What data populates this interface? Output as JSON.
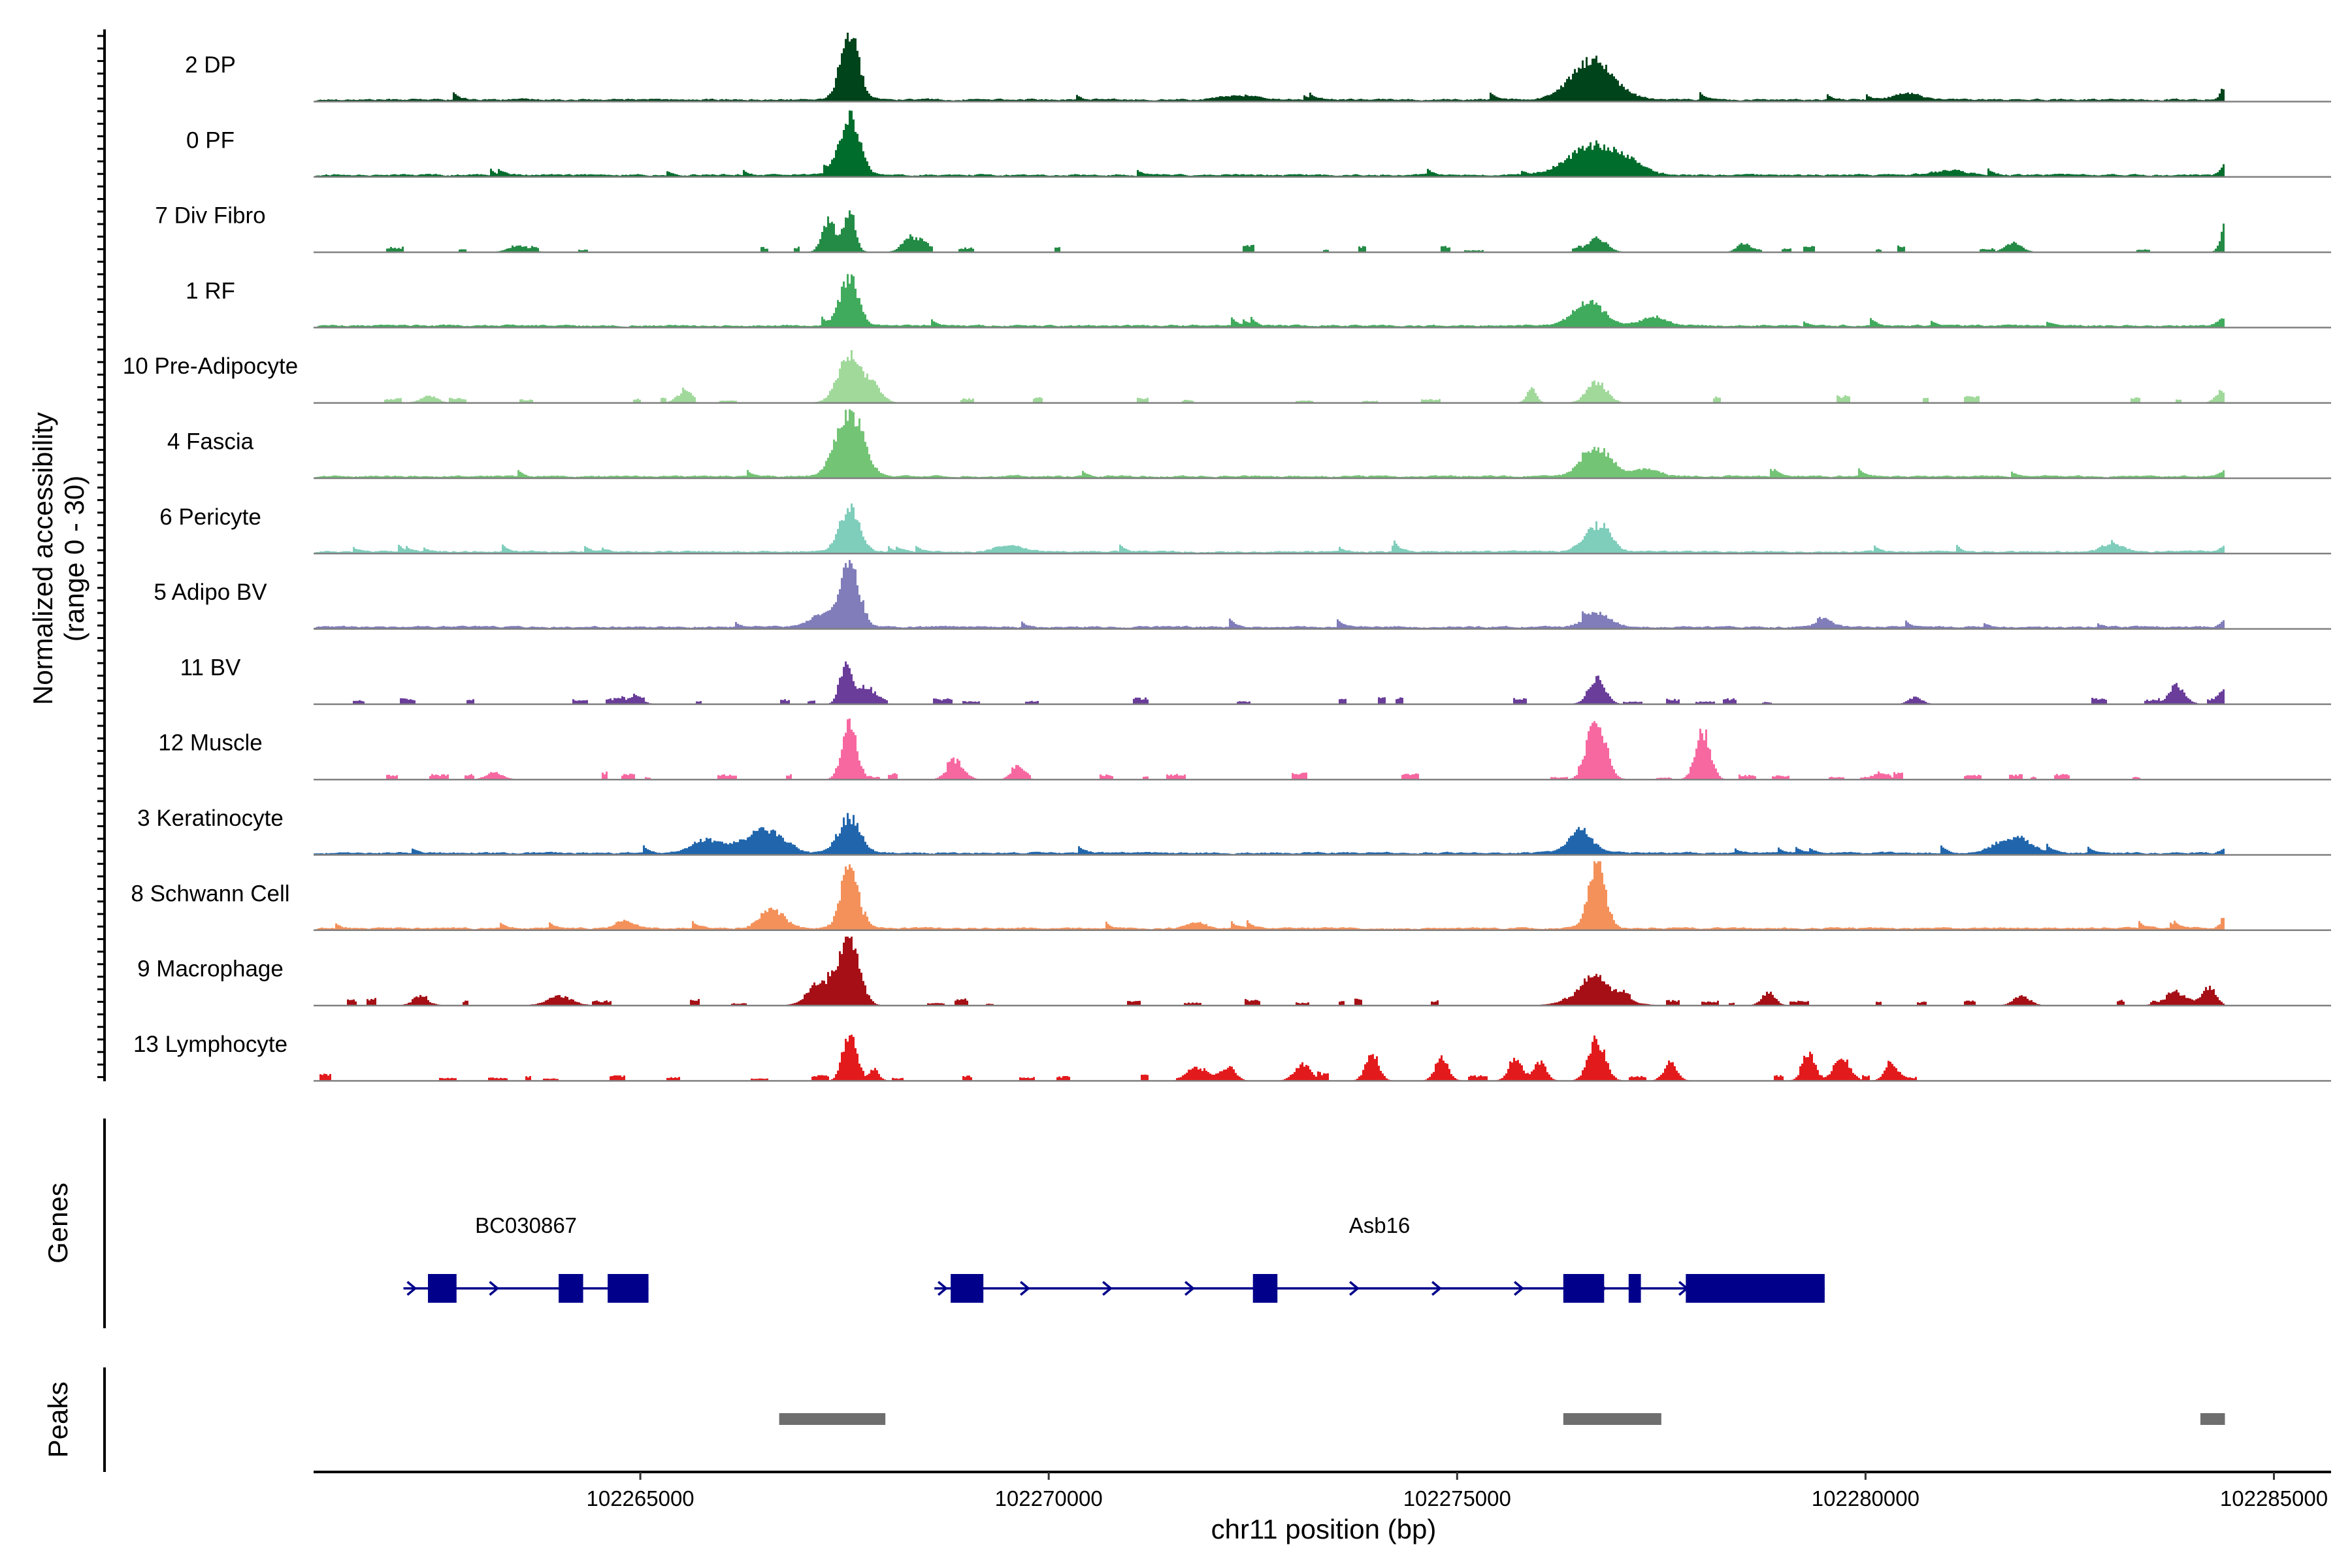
{
  "chart_data": {
    "type": "area",
    "title": "",
    "ylabel_line1": "Normalized accessibility",
    "ylabel_line2": "(range 0 - 30)",
    "ylim": [
      0,
      30
    ],
    "xlabel": "chr11 position (bp)",
    "chrom": "chr11",
    "xlim": [
      102261000,
      102285700
    ],
    "xticks": [
      102265000,
      102270000,
      102275000,
      102280000,
      102285000
    ],
    "xtick_labels": [
      "102265000",
      "102270000",
      "102275000",
      "102280000",
      "102285000"
    ],
    "data_end": 102284400,
    "tracks": [
      {
        "name": "2 DP",
        "color": "#00441b",
        "density": "dense",
        "peaks": [
          [
            102267550,
            30,
            110
          ],
          [
            102276650,
            17,
            260
          ],
          [
            102284400,
            6,
            60
          ],
          [
            102280500,
            3,
            150
          ],
          [
            102272300,
            2,
            200
          ]
        ]
      },
      {
        "name": "0 PF",
        "color": "#006d2c",
        "density": "dense",
        "peaks": [
          [
            102267550,
            26,
            120
          ],
          [
            102276650,
            13,
            300
          ],
          [
            102277100,
            4,
            200
          ],
          [
            102284400,
            5,
            60
          ],
          [
            102281000,
            2,
            200
          ]
        ]
      },
      {
        "name": "7 Div Fibro",
        "color": "#238b45",
        "density": "sparse",
        "peaks": [
          [
            102267300,
            14,
            80
          ],
          [
            102267550,
            18,
            70
          ],
          [
            102268300,
            7,
            100
          ],
          [
            102276700,
            6,
            120
          ],
          [
            102278500,
            4,
            80
          ],
          [
            102281800,
            4,
            100
          ],
          [
            102284400,
            12,
            60
          ],
          [
            102263500,
            3,
            120
          ]
        ]
      },
      {
        "name": "1 RF",
        "color": "#41ab5d",
        "density": "dense",
        "peaks": [
          [
            102267550,
            22,
            110
          ],
          [
            102276600,
            11,
            180
          ],
          [
            102277400,
            4,
            160
          ],
          [
            102284350,
            3,
            60
          ]
        ]
      },
      {
        "name": "10 Pre-Adipocyte",
        "color": "#a1d99b",
        "density": "sparse",
        "peaks": [
          [
            102267550,
            21,
            140
          ],
          [
            102267850,
            7,
            100
          ],
          [
            102276700,
            9,
            120
          ],
          [
            102275900,
            6,
            60
          ],
          [
            102265500,
            4,
            80
          ],
          [
            102262400,
            3,
            100
          ],
          [
            102284300,
            3,
            60
          ]
        ]
      },
      {
        "name": "4 Fascia",
        "color": "#74c476",
        "density": "dense",
        "peaks": [
          [
            102267550,
            30,
            160
          ],
          [
            102276700,
            12,
            180
          ],
          [
            102277300,
            3,
            150
          ],
          [
            102284400,
            3,
            60
          ]
        ]
      },
      {
        "name": "6 Pericyte",
        "color": "#7fcdbb",
        "density": "dense",
        "peaks": [
          [
            102267550,
            20,
            120
          ],
          [
            102276700,
            12,
            150
          ],
          [
            102269500,
            3,
            150
          ],
          [
            102283000,
            3,
            150
          ],
          [
            102284400,
            3,
            60
          ]
        ]
      },
      {
        "name": "5 Adipo BV",
        "color": "#807dba",
        "density": "dense",
        "peaks": [
          [
            102267550,
            27,
            120
          ],
          [
            102276700,
            6,
            150
          ],
          [
            102267200,
            5,
            150
          ],
          [
            102279500,
            3,
            100
          ],
          [
            102284400,
            3,
            60
          ]
        ]
      },
      {
        "name": "11 BV",
        "color": "#6a3d9a",
        "density": "sparse",
        "peaks": [
          [
            102267500,
            18,
            70
          ],
          [
            102267750,
            8,
            100
          ],
          [
            102276700,
            11,
            100
          ],
          [
            102283800,
            8,
            100
          ],
          [
            102284400,
            7,
            60
          ],
          [
            102264900,
            3,
            100
          ],
          [
            102280600,
            3,
            80
          ]
        ]
      },
      {
        "name": "12 Muscle",
        "color": "#f768a1",
        "density": "sparse",
        "peaks": [
          [
            102267550,
            25,
            90
          ],
          [
            102276700,
            26,
            110
          ],
          [
            102278000,
            21,
            90
          ],
          [
            102268850,
            8,
            100
          ],
          [
            102269600,
            4,
            80
          ],
          [
            102263200,
            3,
            100
          ],
          [
            102280200,
            3,
            80
          ]
        ]
      },
      {
        "name": "3 Keratinocyte",
        "color": "#2166ac",
        "density": "dense",
        "peaks": [
          [
            102267550,
            16,
            130
          ],
          [
            102266500,
            10,
            250
          ],
          [
            102265800,
            6,
            180
          ],
          [
            102276500,
            10,
            150
          ],
          [
            102281800,
            7,
            200
          ],
          [
            102284400,
            2,
            60
          ]
        ]
      },
      {
        "name": "8 Schwann Cell",
        "color": "#f4915b",
        "density": "dense",
        "peaks": [
          [
            102267550,
            30,
            100
          ],
          [
            102276700,
            30,
            100
          ],
          [
            102266600,
            8,
            150
          ],
          [
            102284400,
            6,
            60
          ],
          [
            102264800,
            3,
            120
          ],
          [
            102271800,
            3,
            100
          ]
        ]
      },
      {
        "name": "9 Macrophage",
        "color": "#a50f15",
        "density": "sparse",
        "peaks": [
          [
            102267550,
            30,
            120
          ],
          [
            102267200,
            10,
            150
          ],
          [
            102276700,
            10,
            250
          ],
          [
            102278800,
            6,
            80
          ],
          [
            102281900,
            4,
            100
          ],
          [
            102283800,
            5,
            150
          ],
          [
            102284200,
            8,
            80
          ],
          [
            102262300,
            3,
            100
          ],
          [
            102264000,
            4,
            150
          ]
        ]
      },
      {
        "name": "13 Lymphocyte",
        "color": "#e31a1c",
        "density": "sparse",
        "clip_end": 102280700,
        "peaks": [
          [
            102267550,
            22,
            80
          ],
          [
            102276700,
            18,
            100
          ],
          [
            102273950,
            12,
            80
          ],
          [
            102274800,
            10,
            80
          ],
          [
            102275700,
            10,
            80
          ],
          [
            102276000,
            8,
            80
          ],
          [
            102277600,
            8,
            80
          ],
          [
            102279300,
            10,
            80
          ],
          [
            102279700,
            10,
            100
          ],
          [
            102280300,
            7,
            80
          ],
          [
            102271800,
            6,
            100
          ],
          [
            102272200,
            6,
            80
          ],
          [
            102273100,
            7,
            100
          ],
          [
            102267850,
            5,
            60
          ]
        ]
      }
    ],
    "genes_label": "Genes",
    "genes": [
      {
        "name": "BC030867",
        "start": 102262100,
        "end": 102265100,
        "strand": "+",
        "exons": [
          [
            102262400,
            102262750
          ],
          [
            102264000,
            102264300
          ],
          [
            102264600,
            102265100
          ]
        ]
      },
      {
        "name": "Asb16",
        "start": 102268600,
        "end": 102279500,
        "strand": "+",
        "exons": [
          [
            102268800,
            102269200
          ],
          [
            102272500,
            102272800
          ],
          [
            102276300,
            102276800
          ],
          [
            102277100,
            102277250
          ],
          [
            102277800,
            102279500
          ]
        ]
      }
    ],
    "peaks_label": "Peaks",
    "peak_regions": [
      [
        102266700,
        102268000
      ],
      [
        102276300,
        102277500
      ],
      [
        102284100,
        102284400
      ]
    ]
  }
}
